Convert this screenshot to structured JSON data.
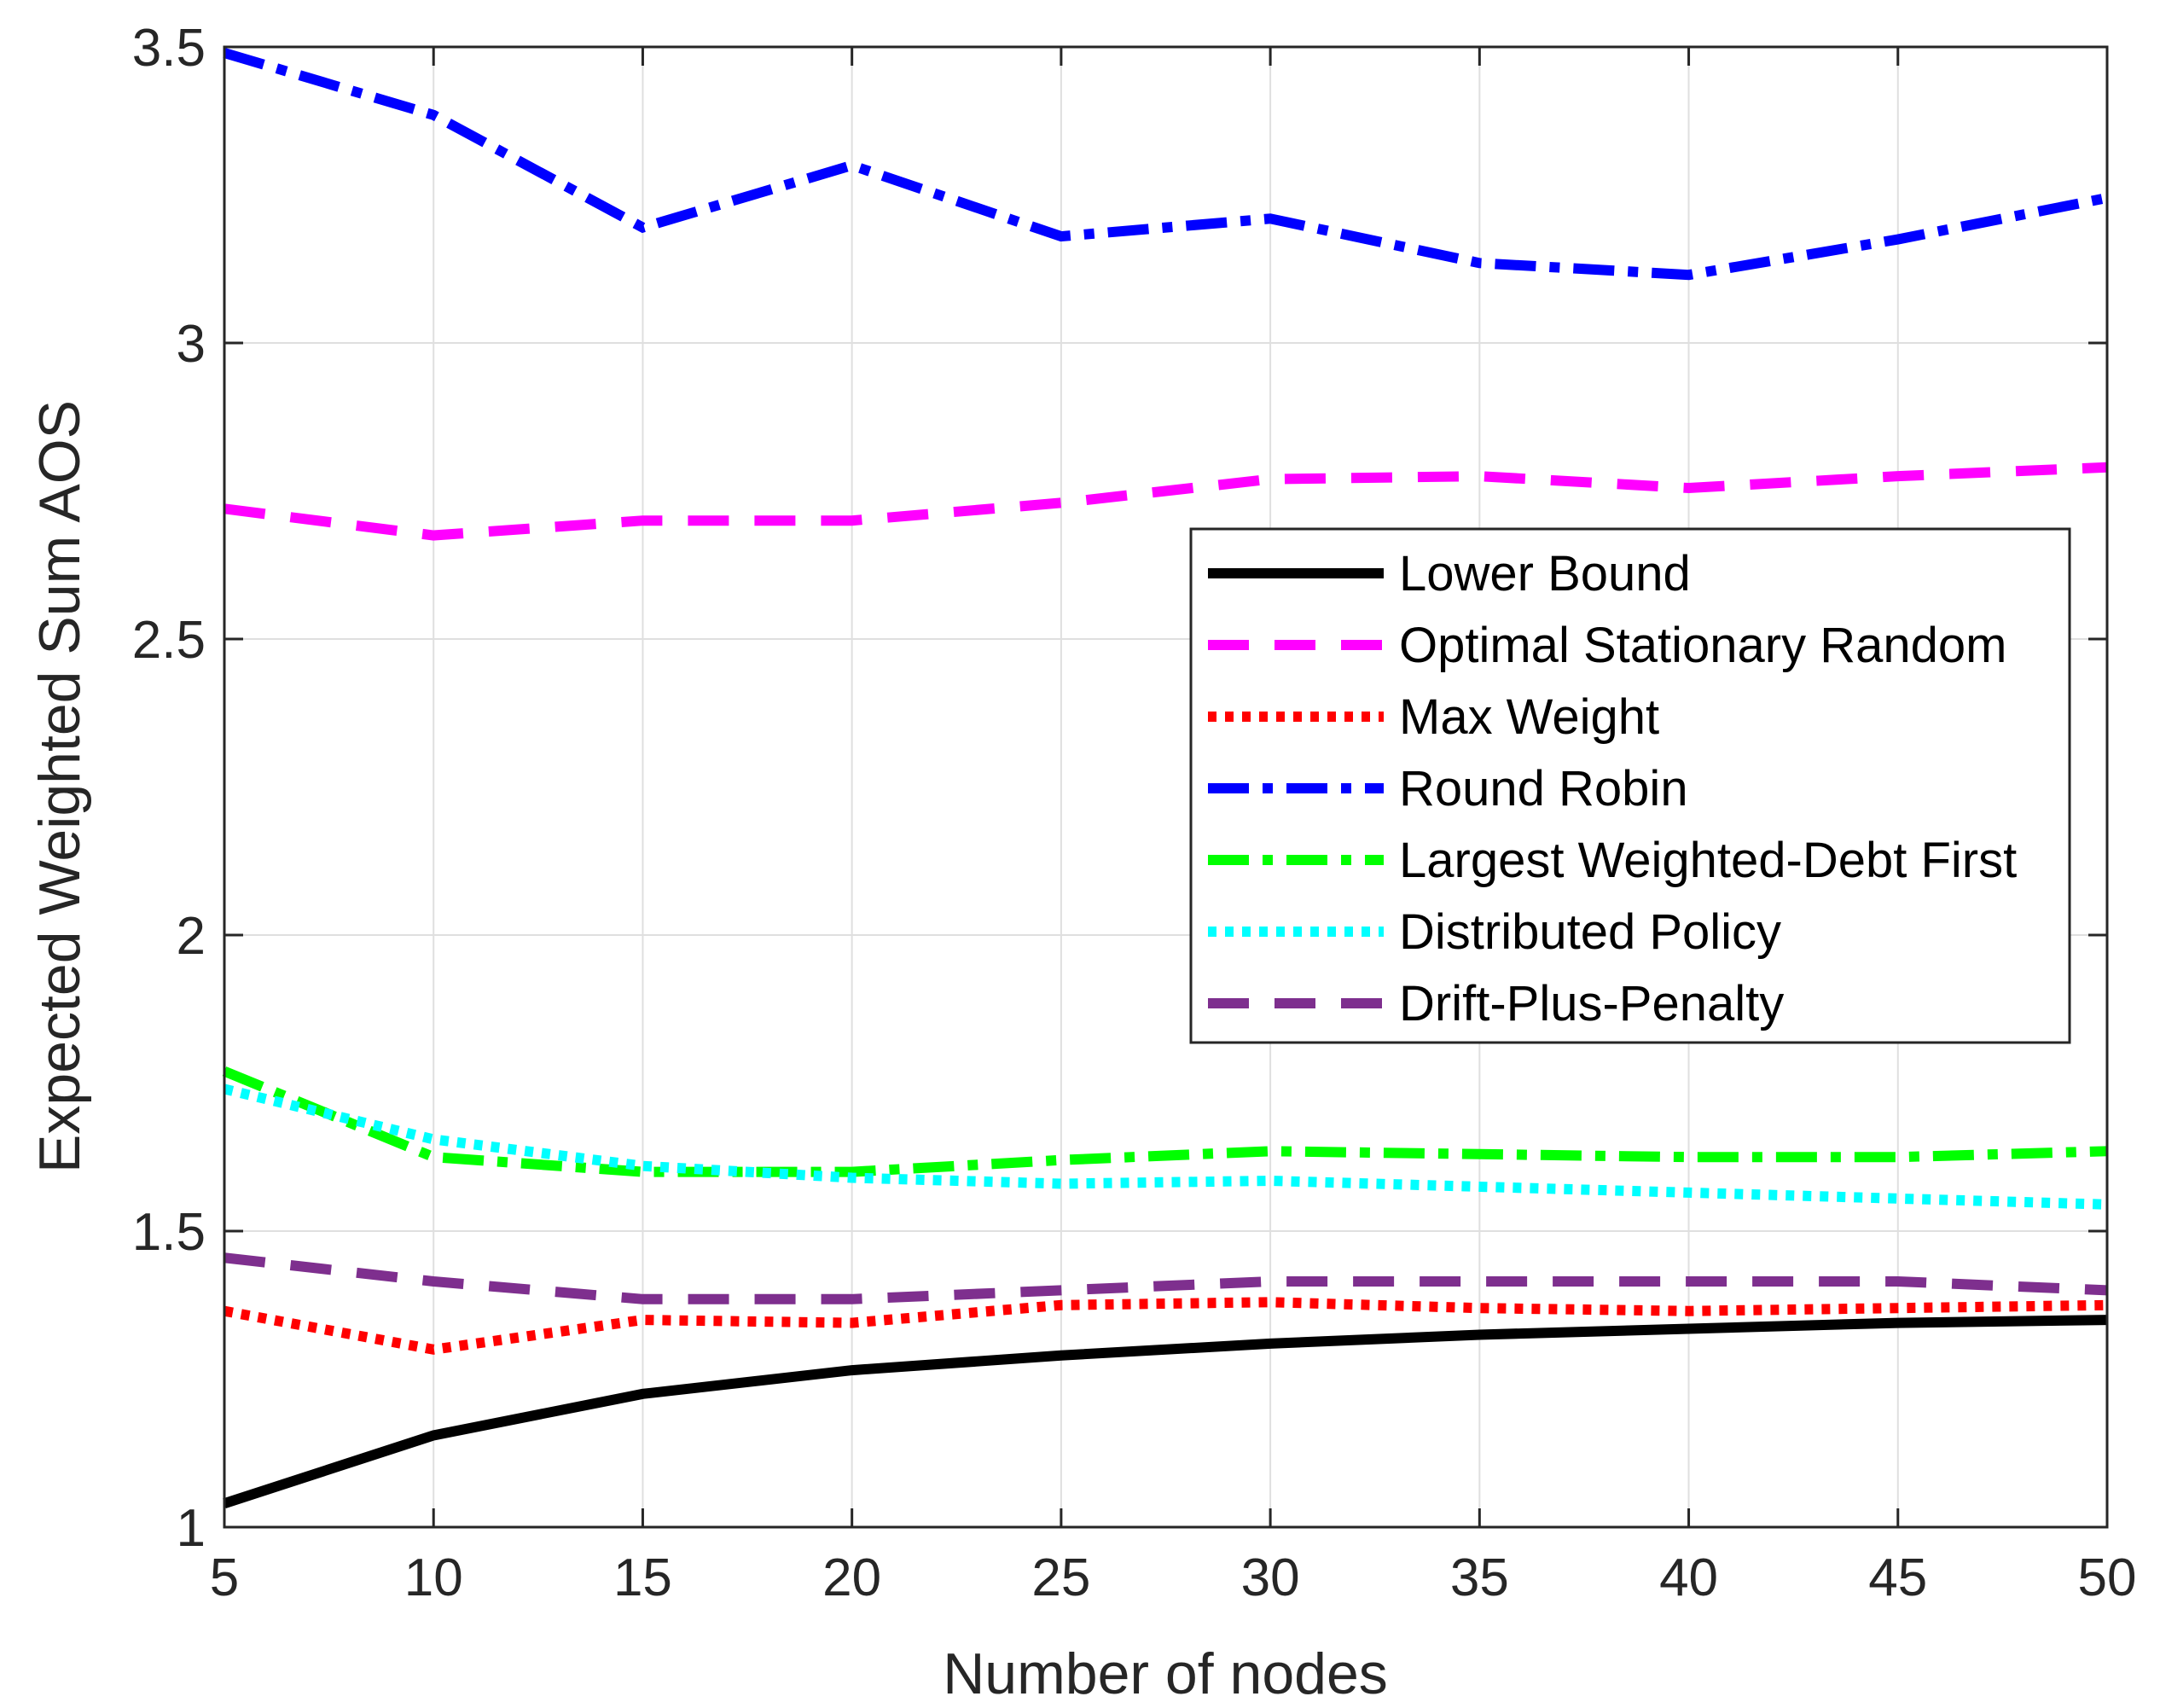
{
  "chart_data": {
    "type": "line",
    "title": "",
    "xlabel": "Number of nodes",
    "ylabel": "Expected Weighted Sum AOS",
    "xlim": [
      5,
      50
    ],
    "ylim": [
      1,
      3.5
    ],
    "grid": true,
    "legend_position": "right-center",
    "x": [
      5,
      10,
      15,
      20,
      25,
      30,
      35,
      40,
      45,
      50
    ],
    "x_ticks": [
      "5",
      "10",
      "15",
      "20",
      "25",
      "30",
      "35",
      "40",
      "45",
      "50"
    ],
    "y_ticks": [
      "1",
      "1.5",
      "2",
      "2.5",
      "3",
      "3.5"
    ],
    "series": [
      {
        "name": "Lower Bound",
        "color": "#000000",
        "style": "solid",
        "values": [
          1.04,
          1.155,
          1.225,
          1.265,
          1.29,
          1.31,
          1.325,
          1.335,
          1.345,
          1.35
        ]
      },
      {
        "name": "Optimal Stationary Random",
        "color": "#ff00ff",
        "style": "dashed",
        "values": [
          2.72,
          2.675,
          2.7,
          2.7,
          2.73,
          2.77,
          2.775,
          2.755,
          2.775,
          2.79
        ]
      },
      {
        "name": "Max Weight",
        "color": "#ff0000",
        "style": "dotted",
        "values": [
          1.365,
          1.3,
          1.35,
          1.345,
          1.375,
          1.38,
          1.37,
          1.365,
          1.37,
          1.375
        ]
      },
      {
        "name": "Round Robin",
        "color": "#0000ff",
        "style": "dashdot",
        "values": [
          3.49,
          3.385,
          3.195,
          3.3,
          3.18,
          3.21,
          3.135,
          3.115,
          3.175,
          3.245
        ]
      },
      {
        "name": "Largest Weighted-Debt First",
        "color": "#00ff00",
        "style": "dashdot",
        "values": [
          1.77,
          1.625,
          1.6,
          1.6,
          1.62,
          1.635,
          1.63,
          1.625,
          1.625,
          1.635
        ]
      },
      {
        "name": "Distributed Policy",
        "color": "#00ffff",
        "style": "dotted",
        "values": [
          1.74,
          1.655,
          1.61,
          1.59,
          1.58,
          1.585,
          1.575,
          1.565,
          1.555,
          1.545
        ]
      },
      {
        "name": "Drift-Plus-Penalty",
        "color": "#7e2f8e",
        "style": "dashed",
        "values": [
          1.455,
          1.415,
          1.385,
          1.385,
          1.4,
          1.415,
          1.415,
          1.415,
          1.415,
          1.4
        ]
      }
    ]
  }
}
